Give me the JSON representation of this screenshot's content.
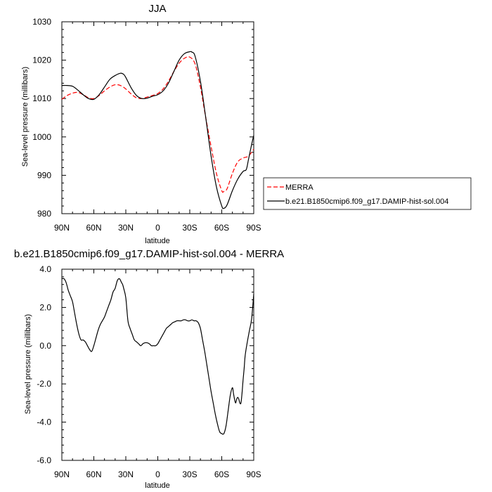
{
  "chart_data": [
    {
      "type": "line",
      "title": "JJA",
      "xlabel": "latitude",
      "ylabel": "Sea-level pressure (millibars)",
      "ylim": [
        980,
        1030
      ],
      "yticks": [
        980,
        990,
        1000,
        1010,
        1020,
        1030
      ],
      "yticks_labels": [
        "980",
        "990",
        "1000",
        "1010",
        "1020",
        "1030"
      ],
      "xlim": [
        90,
        -90
      ],
      "xticks": [
        90,
        60,
        30,
        0,
        -30,
        -60,
        -90
      ],
      "xtick_labels": [
        "90N",
        "60N",
        "30N",
        "0",
        "30S",
        "60S",
        "90S"
      ],
      "grid": false,
      "legend_placement": "outside-right",
      "series": [
        {
          "name": "MERRA",
          "color": "#ff0000",
          "dash": "dashed",
          "x": [
            90,
            85,
            80,
            75,
            70,
            65,
            60,
            55,
            50,
            45,
            40,
            35,
            30,
            25,
            20,
            15,
            10,
            5,
            0,
            -5,
            -10,
            -15,
            -20,
            -25,
            -30,
            -35,
            -40,
            -45,
            -50,
            -55,
            -60,
            -62,
            -65,
            -70,
            -75,
            -80,
            -85,
            -90
          ],
          "values": [
            1009.8,
            1010.8,
            1011.4,
            1011.6,
            1011.0,
            1010.2,
            1010.0,
            1010.8,
            1012.0,
            1013.0,
            1013.6,
            1013.4,
            1012.5,
            1011.2,
            1010.2,
            1010.0,
            1010.4,
            1010.8,
            1011.3,
            1012.5,
            1014.5,
            1017.0,
            1019.2,
            1020.5,
            1020.8,
            1019.0,
            1013.0,
            1005.0,
            997.5,
            990.5,
            986.0,
            985.8,
            986.5,
            990.5,
            993.5,
            994.5,
            995.0,
            996.8
          ]
        },
        {
          "name": "b.e21.B1850cmip6.f09_g17.DAMIP-hist-sol.004",
          "color": "#000000",
          "dash": "solid",
          "x": [
            90,
            85,
            80,
            75,
            70,
            65,
            60,
            55,
            50,
            45,
            40,
            35,
            32,
            30,
            25,
            20,
            15,
            10,
            5,
            0,
            -5,
            -10,
            -15,
            -20,
            -25,
            -30,
            -32,
            -35,
            -40,
            -45,
            -50,
            -55,
            -60,
            -62,
            -65,
            -70,
            -75,
            -80,
            -83,
            -85,
            -88,
            -90
          ],
          "values": [
            1013.4,
            1013.4,
            1013.2,
            1012.2,
            1011.0,
            1010.0,
            1009.8,
            1011.0,
            1013.0,
            1015.0,
            1016.0,
            1016.6,
            1016.3,
            1015.5,
            1012.8,
            1010.8,
            1010.0,
            1010.1,
            1010.6,
            1011.0,
            1012.0,
            1014.0,
            1017.0,
            1020.0,
            1021.7,
            1022.2,
            1022.1,
            1021.0,
            1014.5,
            1005.0,
            995.0,
            987.0,
            982.0,
            981.4,
            982.3,
            986.0,
            989.0,
            991.0,
            991.5,
            994.0,
            998.0,
            1000.4
          ]
        }
      ]
    },
    {
      "type": "line",
      "title": "b.e21.B1850cmip6.f09_g17.DAMIP-hist-sol.004 - MERRA",
      "xlabel": "latitude",
      "ylabel": "Sea-level pressure (millibars)",
      "ylim": [
        -6.0,
        4.0
      ],
      "yticks": [
        -6.0,
        -4.0,
        -2.0,
        0.0,
        2.0,
        4.0
      ],
      "yticks_labels": [
        "-6.0",
        "-4.0",
        "-2.0",
        "0.0",
        "2.0",
        "4.0"
      ],
      "xlim": [
        90,
        -90
      ],
      "xticks": [
        90,
        60,
        30,
        0,
        -30,
        -60,
        -90
      ],
      "xtick_labels": [
        "90N",
        "60N",
        "30N",
        "0",
        "30S",
        "60S",
        "90S"
      ],
      "grid": false,
      "series": [
        {
          "color": "#000000",
          "dash": "solid",
          "x": [
            90,
            88,
            86,
            84,
            82,
            80,
            78,
            76,
            74,
            72,
            70,
            68,
            66,
            64,
            62,
            60,
            58,
            56,
            54,
            52,
            50,
            48,
            46,
            44,
            42,
            40,
            38,
            36,
            34,
            33,
            32,
            30,
            28,
            26,
            24,
            22,
            20,
            18,
            16,
            14,
            12,
            10,
            8,
            6,
            4,
            2,
            0,
            -2,
            -4,
            -6,
            -8,
            -10,
            -12,
            -14,
            -16,
            -18,
            -20,
            -22,
            -24,
            -26,
            -28,
            -30,
            -32,
            -34,
            -36,
            -38,
            -40,
            -42,
            -44,
            -46,
            -48,
            -50,
            -52,
            -54,
            -56,
            -58,
            -60,
            -62,
            -64,
            -66,
            -68,
            -70,
            -71,
            -72,
            -73,
            -74,
            -75,
            -76,
            -77,
            -78,
            -79,
            -80,
            -81,
            -82,
            -84,
            -86,
            -88,
            -90
          ],
          "values": [
            3.5,
            3.5,
            3.3,
            2.9,
            2.6,
            2.3,
            1.7,
            1.1,
            0.6,
            0.3,
            0.3,
            0.2,
            0.0,
            -0.2,
            -0.3,
            0.0,
            0.4,
            0.8,
            1.1,
            1.3,
            1.5,
            1.8,
            2.1,
            2.4,
            2.8,
            3.0,
            3.4,
            3.5,
            3.3,
            3.2,
            3.0,
            2.5,
            1.3,
            0.9,
            0.6,
            0.3,
            0.2,
            0.1,
            0.0,
            0.1,
            0.15,
            0.15,
            0.1,
            0.0,
            0.0,
            0.0,
            0.1,
            0.3,
            0.5,
            0.7,
            0.9,
            1.0,
            1.1,
            1.2,
            1.25,
            1.3,
            1.3,
            1.3,
            1.35,
            1.35,
            1.3,
            1.3,
            1.35,
            1.3,
            1.3,
            1.2,
            0.9,
            0.3,
            -0.3,
            -1.0,
            -1.7,
            -2.4,
            -3.0,
            -3.6,
            -4.1,
            -4.5,
            -4.6,
            -4.6,
            -4.2,
            -3.4,
            -2.6,
            -2.2,
            -2.5,
            -2.8,
            -3.0,
            -2.8,
            -2.7,
            -2.8,
            -3.0,
            -3.0,
            -2.5,
            -1.8,
            -1.2,
            -0.5,
            0.2,
            0.8,
            1.4,
            2.7
          ]
        }
      ]
    }
  ]
}
